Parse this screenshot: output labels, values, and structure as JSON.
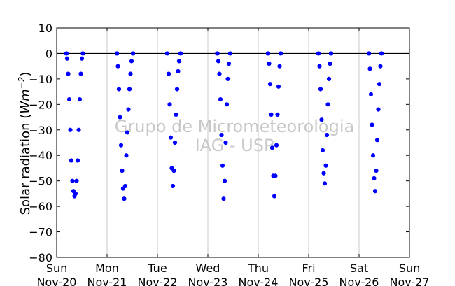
{
  "chart_data": {
    "type": "scatter",
    "title": "",
    "xlabel": "",
    "ylabel": "Solar radiation (Wm⁻²)",
    "ylabel_main": "Solar radiation (",
    "ylabel_unit": "Wm",
    "ylabel_exp": "−2",
    "ylabel_close": ")",
    "ylim": [
      -80,
      10
    ],
    "y_ticks": [
      10,
      0,
      -10,
      -20,
      -30,
      -40,
      -50,
      -60,
      -70,
      -80
    ],
    "y_tick_labels": [
      "10",
      "0",
      "−10",
      "−20",
      "−30",
      "−40",
      "−50",
      "−60",
      "−70",
      "−80"
    ],
    "x_ticks": [
      {
        "weekday": "Sun",
        "date": "Nov-20"
      },
      {
        "weekday": "Mon",
        "date": "Nov-21"
      },
      {
        "weekday": "Tue",
        "date": "Nov-22"
      },
      {
        "weekday": "Wed",
        "date": "Nov-23"
      },
      {
        "weekday": "Thu",
        "date": "Nov-24"
      },
      {
        "weekday": "Fri",
        "date": "Nov-25"
      },
      {
        "weekday": "Sat",
        "date": "Nov-26"
      },
      {
        "weekday": "Sun",
        "date": "Nov-27"
      }
    ],
    "grid": "vertical",
    "zero_line": true,
    "marker_color": "#0000ff",
    "watermark": [
      "Grupo de Micrometeorologia",
      "IAG - USP"
    ],
    "series": [
      {
        "points": [
          {
            "x": "Nov-20 04:40",
            "y": 0
          },
          {
            "x": "Nov-20 05:00",
            "y": -2
          },
          {
            "x": "Nov-20 05:30",
            "y": -8
          },
          {
            "x": "Nov-20 06:00",
            "y": -18
          },
          {
            "x": "Nov-20 06:30",
            "y": -30
          },
          {
            "x": "Nov-20 07:00",
            "y": -42
          },
          {
            "x": "Nov-20 07:30",
            "y": -50
          },
          {
            "x": "Nov-20 08:00",
            "y": -54
          },
          {
            "x": "Nov-20 08:30",
            "y": -56
          },
          {
            "x": "Nov-20 09:00",
            "y": -55
          },
          {
            "x": "Nov-20 09:30",
            "y": -50
          },
          {
            "x": "Nov-20 10:00",
            "y": -42
          },
          {
            "x": "Nov-20 10:30",
            "y": -30
          },
          {
            "x": "Nov-20 11:00",
            "y": -18
          },
          {
            "x": "Nov-20 11:30",
            "y": -8
          },
          {
            "x": "Nov-20 12:00",
            "y": -2
          },
          {
            "x": "Nov-20 12:30",
            "y": 0
          },
          {
            "x": "Nov-21 04:40",
            "y": 0
          },
          {
            "x": "Nov-21 05:10",
            "y": -5
          },
          {
            "x": "Nov-21 05:40",
            "y": -14
          },
          {
            "x": "Nov-21 06:10",
            "y": -25
          },
          {
            "x": "Nov-21 06:40",
            "y": -36
          },
          {
            "x": "Nov-21 07:10",
            "y": -46
          },
          {
            "x": "Nov-21 07:40",
            "y": -53
          },
          {
            "x": "Nov-21 08:10",
            "y": -57
          },
          {
            "x": "Nov-21 08:40",
            "y": -52
          },
          {
            "x": "Nov-21 09:10",
            "y": -40
          },
          {
            "x": "Nov-21 09:40",
            "y": -31
          },
          {
            "x": "Nov-21 10:10",
            "y": -22
          },
          {
            "x": "Nov-21 10:40",
            "y": -14
          },
          {
            "x": "Nov-21 11:10",
            "y": -8
          },
          {
            "x": "Nov-21 11:40",
            "y": -3
          },
          {
            "x": "Nov-21 12:20",
            "y": 0
          },
          {
            "x": "Nov-22 04:40",
            "y": 0
          },
          {
            "x": "Nov-22 05:20",
            "y": -8
          },
          {
            "x": "Nov-22 05:50",
            "y": -20
          },
          {
            "x": "Nov-22 06:20",
            "y": -33
          },
          {
            "x": "Nov-22 06:50",
            "y": -45
          },
          {
            "x": "Nov-22 07:20",
            "y": -52
          },
          {
            "x": "Nov-22 07:50",
            "y": -46
          },
          {
            "x": "Nov-22 08:20",
            "y": -35
          },
          {
            "x": "Nov-22 08:50",
            "y": -24
          },
          {
            "x": "Nov-22 09:20",
            "y": -14
          },
          {
            "x": "Nov-22 09:50",
            "y": -7
          },
          {
            "x": "Nov-22 10:20",
            "y": -3
          },
          {
            "x": "Nov-22 11:00",
            "y": 0
          },
          {
            "x": "Nov-23 04:30",
            "y": 0
          },
          {
            "x": "Nov-23 05:00",
            "y": -3
          },
          {
            "x": "Nov-23 05:30",
            "y": -8
          },
          {
            "x": "Nov-23 06:00",
            "y": -18
          },
          {
            "x": "Nov-23 06:30",
            "y": -32
          },
          {
            "x": "Nov-23 07:00",
            "y": -44
          },
          {
            "x": "Nov-23 07:30",
            "y": -57
          },
          {
            "x": "Nov-23 08:00",
            "y": -50
          },
          {
            "x": "Nov-23 08:30",
            "y": -35
          },
          {
            "x": "Nov-23 09:00",
            "y": -20
          },
          {
            "x": "Nov-23 09:30",
            "y": -10
          },
          {
            "x": "Nov-23 10:00",
            "y": -4
          },
          {
            "x": "Nov-23 10:40",
            "y": 0
          },
          {
            "x": "Nov-24 04:40",
            "y": 0
          },
          {
            "x": "Nov-24 05:10",
            "y": -4
          },
          {
            "x": "Nov-24 05:40",
            "y": -12
          },
          {
            "x": "Nov-24 06:10",
            "y": -24
          },
          {
            "x": "Nov-24 06:40",
            "y": -37
          },
          {
            "x": "Nov-24 07:10",
            "y": -48
          },
          {
            "x": "Nov-24 07:40",
            "y": -56
          },
          {
            "x": "Nov-24 08:10",
            "y": -48
          },
          {
            "x": "Nov-24 08:40",
            "y": -36
          },
          {
            "x": "Nov-24 09:10",
            "y": -24
          },
          {
            "x": "Nov-24 09:40",
            "y": -13
          },
          {
            "x": "Nov-24 10:10",
            "y": -5
          },
          {
            "x": "Nov-24 10:40",
            "y": 0
          },
          {
            "x": "Nov-25 04:40",
            "y": 0
          },
          {
            "x": "Nov-25 05:10",
            "y": -5
          },
          {
            "x": "Nov-25 05:40",
            "y": -14
          },
          {
            "x": "Nov-25 06:10",
            "y": -26
          },
          {
            "x": "Nov-25 06:40",
            "y": -38
          },
          {
            "x": "Nov-25 07:10",
            "y": -47
          },
          {
            "x": "Nov-25 07:40",
            "y": -51
          },
          {
            "x": "Nov-25 08:10",
            "y": -44
          },
          {
            "x": "Nov-25 08:40",
            "y": -32
          },
          {
            "x": "Nov-25 09:10",
            "y": -20
          },
          {
            "x": "Nov-25 09:40",
            "y": -10
          },
          {
            "x": "Nov-25 10:10",
            "y": -4
          },
          {
            "x": "Nov-25 10:40",
            "y": 0
          },
          {
            "x": "Nov-26 04:40",
            "y": 0
          },
          {
            "x": "Nov-26 05:10",
            "y": -6
          },
          {
            "x": "Nov-26 05:40",
            "y": -16
          },
          {
            "x": "Nov-26 06:10",
            "y": -28
          },
          {
            "x": "Nov-26 06:40",
            "y": -40
          },
          {
            "x": "Nov-26 07:10",
            "y": -49
          },
          {
            "x": "Nov-26 07:40",
            "y": -54
          },
          {
            "x": "Nov-26 08:10",
            "y": -46
          },
          {
            "x": "Nov-26 08:40",
            "y": -34
          },
          {
            "x": "Nov-26 09:10",
            "y": -22
          },
          {
            "x": "Nov-26 09:40",
            "y": -12
          },
          {
            "x": "Nov-26 10:10",
            "y": -5
          },
          {
            "x": "Nov-26 10:40",
            "y": 0
          }
        ]
      }
    ]
  }
}
